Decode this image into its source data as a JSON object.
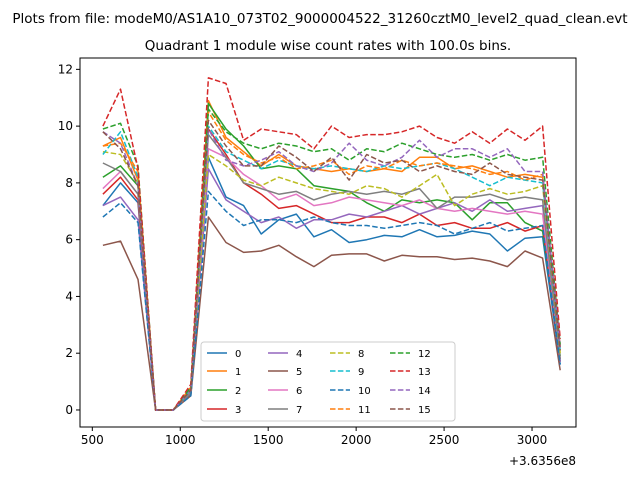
{
  "suptitle": "Plots from file: modeM0/AS1A10_073T02_9000004522_31260cztM0_level2_quad_clean.evt",
  "chart_data": {
    "type": "line",
    "title": "Quadrant 1 module wise count rates with 100.0s bins.",
    "xlabel": "",
    "ylabel": "",
    "x_offset_label": "+3.6356e8",
    "xlim": [
      430,
      3250
    ],
    "ylim": [
      -0.6,
      12.4
    ],
    "xticks": [
      500,
      1000,
      1500,
      2000,
      2500,
      3000
    ],
    "yticks": [
      0,
      2,
      4,
      6,
      8,
      10,
      12
    ],
    "x": [
      560,
      660,
      760,
      860,
      960,
      1060,
      1160,
      1260,
      1360,
      1460,
      1560,
      1660,
      1760,
      1860,
      1960,
      2060,
      2160,
      2260,
      2360,
      2460,
      2560,
      2660,
      2760,
      2860,
      2960,
      3060,
      3160
    ],
    "legend_position": "lower center",
    "grid": false,
    "series": [
      {
        "name": "0",
        "color": "#1f77b4",
        "dash": "solid",
        "values": [
          7.2,
          8.0,
          7.3,
          0.0,
          0.0,
          0.55,
          8.9,
          7.5,
          7.2,
          6.2,
          6.7,
          6.9,
          6.1,
          6.35,
          5.9,
          6.0,
          6.15,
          6.1,
          6.35,
          6.1,
          6.15,
          6.3,
          6.2,
          5.6,
          6.05,
          6.1,
          1.6
        ]
      },
      {
        "name": "1",
        "color": "#ff7f0e",
        "dash": "solid",
        "values": [
          9.3,
          9.6,
          8.1,
          0.0,
          0.0,
          0.8,
          10.9,
          9.6,
          9.1,
          8.6,
          9.0,
          8.6,
          8.5,
          8.4,
          8.5,
          8.4,
          8.5,
          8.4,
          8.9,
          8.9,
          8.5,
          8.6,
          8.4,
          8.2,
          8.3,
          8.2,
          2.2
        ]
      },
      {
        "name": "2",
        "color": "#2ca02c",
        "dash": "solid",
        "values": [
          8.2,
          8.6,
          7.9,
          0.0,
          0.0,
          0.7,
          10.8,
          9.9,
          9.3,
          8.5,
          8.6,
          8.5,
          7.9,
          7.8,
          7.7,
          7.3,
          7.0,
          7.4,
          7.3,
          7.4,
          7.3,
          6.7,
          7.3,
          7.3,
          6.6,
          6.3,
          1.9
        ]
      },
      {
        "name": "3",
        "color": "#d62728",
        "dash": "solid",
        "values": [
          7.6,
          8.2,
          7.4,
          0.0,
          0.0,
          0.6,
          9.9,
          9.0,
          8.0,
          7.6,
          7.1,
          7.2,
          6.9,
          6.6,
          6.6,
          6.8,
          6.8,
          6.6,
          6.9,
          6.5,
          6.6,
          6.4,
          6.4,
          6.6,
          6.3,
          6.5,
          1.7
        ]
      },
      {
        "name": "4",
        "color": "#9467bd",
        "dash": "solid",
        "values": [
          7.2,
          7.5,
          6.7,
          0.0,
          0.0,
          0.6,
          8.5,
          7.4,
          7.0,
          6.6,
          6.8,
          6.4,
          6.7,
          6.7,
          6.9,
          6.8,
          7.0,
          7.2,
          6.9,
          7.1,
          7.3,
          7.0,
          7.4,
          7.0,
          7.1,
          7.2,
          1.7
        ]
      },
      {
        "name": "5",
        "color": "#8c564b",
        "dash": "solid",
        "values": [
          5.8,
          5.95,
          4.6,
          0.0,
          0.0,
          0.5,
          6.8,
          5.9,
          5.55,
          5.6,
          5.8,
          5.4,
          5.05,
          5.45,
          5.5,
          5.5,
          5.25,
          5.45,
          5.4,
          5.4,
          5.3,
          5.35,
          5.25,
          5.05,
          5.6,
          5.35,
          1.4
        ]
      },
      {
        "name": "6",
        "color": "#e377c2",
        "dash": "solid",
        "values": [
          7.8,
          8.4,
          7.6,
          0.0,
          0.0,
          0.6,
          9.2,
          8.9,
          8.3,
          7.9,
          7.4,
          7.6,
          7.2,
          7.3,
          7.5,
          7.4,
          7.3,
          7.2,
          7.4,
          7.1,
          7.0,
          7.1,
          7.0,
          6.9,
          7.0,
          6.9,
          1.8
        ]
      },
      {
        "name": "7",
        "color": "#7f7f7f",
        "dash": "solid",
        "values": [
          8.7,
          8.4,
          7.6,
          0.0,
          0.0,
          0.6,
          9.7,
          8.9,
          8.0,
          7.8,
          7.6,
          7.7,
          7.4,
          7.6,
          7.7,
          7.6,
          7.7,
          7.6,
          7.8,
          7.1,
          7.5,
          7.5,
          7.6,
          7.4,
          7.5,
          7.4,
          1.8
        ]
      },
      {
        "name": "8",
        "color": "#bcbd22",
        "dash": "dashed",
        "values": [
          9.1,
          9.0,
          8.0,
          0.0,
          0.0,
          0.7,
          9.0,
          8.6,
          8.1,
          7.9,
          8.2,
          8.0,
          7.8,
          7.7,
          7.6,
          7.9,
          7.8,
          7.5,
          7.9,
          8.3,
          7.2,
          7.6,
          7.8,
          7.6,
          7.7,
          7.9,
          2.0
        ]
      },
      {
        "name": "9",
        "color": "#17becf",
        "dash": "dashed",
        "values": [
          9.0,
          9.8,
          8.2,
          0.0,
          0.0,
          0.7,
          10.0,
          9.1,
          8.8,
          8.5,
          8.8,
          8.6,
          8.5,
          8.6,
          8.5,
          8.4,
          8.6,
          8.5,
          8.6,
          8.7,
          8.5,
          8.2,
          7.9,
          8.2,
          8.1,
          8.0,
          2.1
        ]
      },
      {
        "name": "10",
        "color": "#1f77b4",
        "dash": "dashed",
        "values": [
          6.8,
          7.3,
          6.6,
          0.0,
          0.0,
          0.5,
          7.7,
          7.0,
          6.5,
          6.7,
          6.7,
          6.6,
          6.8,
          6.6,
          6.5,
          6.5,
          6.4,
          6.5,
          6.6,
          6.5,
          6.2,
          6.4,
          6.6,
          6.3,
          6.4,
          6.5,
          1.6
        ]
      },
      {
        "name": "11",
        "color": "#ff7f0e",
        "dash": "dashed",
        "values": [
          9.3,
          9.4,
          8.4,
          0.0,
          0.0,
          0.8,
          10.5,
          9.5,
          9.0,
          8.7,
          8.9,
          8.5,
          8.6,
          8.8,
          8.3,
          8.6,
          8.5,
          8.8,
          8.6,
          8.7,
          8.6,
          8.5,
          8.3,
          8.4,
          8.1,
          8.3,
          2.2
        ]
      },
      {
        "name": "12",
        "color": "#2ca02c",
        "dash": "dashed",
        "values": [
          9.9,
          10.1,
          8.6,
          0.0,
          0.0,
          0.8,
          10.6,
          9.8,
          9.4,
          9.2,
          9.4,
          9.3,
          9.1,
          9.2,
          8.8,
          9.2,
          9.1,
          9.4,
          9.2,
          9.0,
          8.9,
          9.0,
          8.8,
          9.0,
          8.8,
          8.9,
          2.3
        ]
      },
      {
        "name": "13",
        "color": "#d62728",
        "dash": "dashed",
        "values": [
          10.0,
          11.3,
          8.5,
          0.0,
          0.0,
          0.9,
          11.7,
          11.5,
          9.5,
          9.9,
          9.8,
          9.7,
          9.2,
          10.0,
          9.6,
          9.7,
          9.7,
          9.8,
          10.0,
          9.6,
          9.4,
          9.8,
          9.4,
          9.9,
          9.5,
          10.0,
          2.5
        ]
      },
      {
        "name": "14",
        "color": "#9467bd",
        "dash": "dashed",
        "values": [
          9.8,
          9.4,
          7.9,
          0.0,
          0.0,
          0.7,
          9.9,
          8.8,
          8.6,
          8.8,
          9.1,
          8.6,
          8.4,
          8.7,
          9.4,
          8.8,
          8.6,
          8.9,
          9.5,
          8.9,
          9.2,
          9.2,
          8.9,
          9.2,
          8.4,
          8.4,
          2.2
        ]
      },
      {
        "name": "15",
        "color": "#8c564b",
        "dash": "dashed",
        "values": [
          9.8,
          9.2,
          7.9,
          0.0,
          0.0,
          0.7,
          10.2,
          9.3,
          8.6,
          8.6,
          9.3,
          8.9,
          8.4,
          8.9,
          8.1,
          9.0,
          8.7,
          8.8,
          8.4,
          8.6,
          8.4,
          8.3,
          8.7,
          8.3,
          8.2,
          8.1,
          2.1
        ]
      }
    ]
  }
}
